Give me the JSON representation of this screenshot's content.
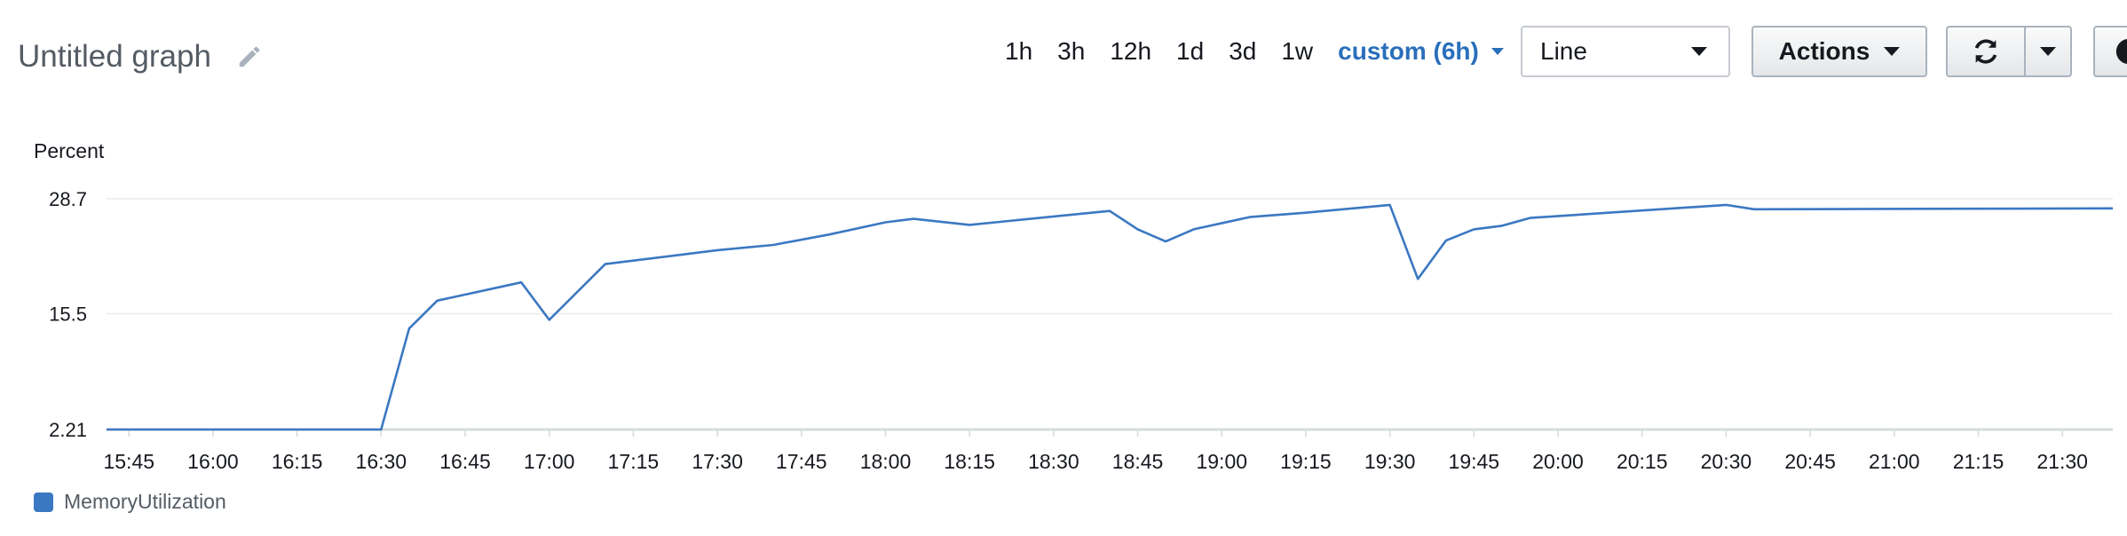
{
  "header": {
    "title": "Untitled graph",
    "time_ranges": [
      "1h",
      "3h",
      "12h",
      "1d",
      "3d",
      "1w"
    ],
    "active_range": "custom (6h)",
    "view_select": "Line",
    "actions_label": "Actions"
  },
  "colors": {
    "series": "#3b78c2",
    "accent": "#2a6fbb",
    "grid": "#e9ebed"
  },
  "chart_data": {
    "type": "line",
    "ylabel": "Percent",
    "y_ticks": [
      "28.7",
      "15.5",
      "2.21"
    ],
    "y_tick_values": [
      28.7,
      15.5,
      2.21
    ],
    "ylim": [
      2.21,
      28.7
    ],
    "x_ticks": [
      "15:45",
      "16:00",
      "16:15",
      "16:30",
      "16:45",
      "17:00",
      "17:15",
      "17:30",
      "17:45",
      "18:00",
      "18:15",
      "18:30",
      "18:45",
      "19:00",
      "19:15",
      "19:30",
      "19:45",
      "20:00",
      "20:15",
      "20:30",
      "20:45",
      "21:00",
      "21:15",
      "21:30"
    ],
    "xlim": [
      "15:41",
      "21:39"
    ],
    "grid": true,
    "legend": "bottom-left",
    "series": [
      {
        "name": "MemoryUtilization",
        "x": [
          "15:41",
          "16:30",
          "16:35",
          "16:40",
          "16:55",
          "17:00",
          "17:10",
          "17:30",
          "17:40",
          "17:50",
          "18:00",
          "18:05",
          "18:15",
          "18:40",
          "18:45",
          "18:50",
          "18:55",
          "19:05",
          "19:15",
          "19:30",
          "19:35",
          "19:40",
          "19:45",
          "19:50",
          "19:55",
          "20:30",
          "20:35",
          "21:39"
        ],
        "y": [
          2.21,
          2.21,
          13.8,
          17.0,
          19.1,
          14.8,
          21.2,
          22.8,
          23.4,
          24.6,
          26.0,
          26.4,
          25.7,
          27.3,
          25.2,
          23.8,
          25.2,
          26.6,
          27.1,
          28.0,
          19.5,
          23.9,
          25.2,
          25.6,
          26.5,
          28.0,
          27.5,
          27.6
        ]
      }
    ]
  }
}
